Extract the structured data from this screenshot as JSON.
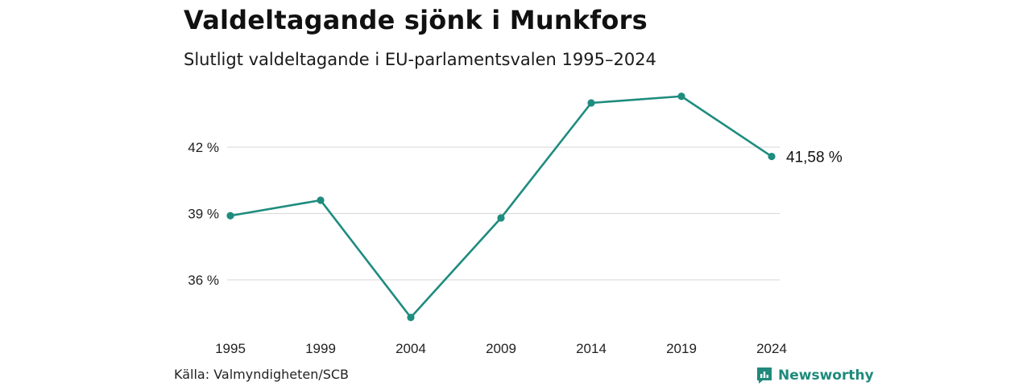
{
  "header": {
    "title": "Valdeltagande sjönk i Munkfors",
    "subtitle": "Slutligt valdeltagande i EU-parlamentsvalen 1995–2024"
  },
  "footer": {
    "source": "Källa: Valmyndigheten/SCB",
    "brand": "Newsworthy",
    "brand_icon": "newsworthy-logo-icon"
  },
  "colors": {
    "line": "#1e8c7e",
    "grid": "#dddddd",
    "brand": "#1f8a7c"
  },
  "chart_data": {
    "type": "line",
    "title": "Valdeltagande sjönk i Munkfors",
    "subtitle": "Slutligt valdeltagande i EU-parlamentsvalen 1995–2024",
    "categories": [
      "1995",
      "1999",
      "2004",
      "2009",
      "2014",
      "2019",
      "2024"
    ],
    "series": [
      {
        "values": [
          38.9,
          39.6,
          34.3,
          38.8,
          44.0,
          44.3,
          41.58
        ]
      }
    ],
    "yticks": [
      36,
      39,
      42
    ],
    "ytick_labels": [
      "36 %",
      "39 %",
      "42 %"
    ],
    "ylim": [
      33.5,
      46
    ],
    "end_label": "41,58 %",
    "grid": true,
    "legend": "none"
  }
}
